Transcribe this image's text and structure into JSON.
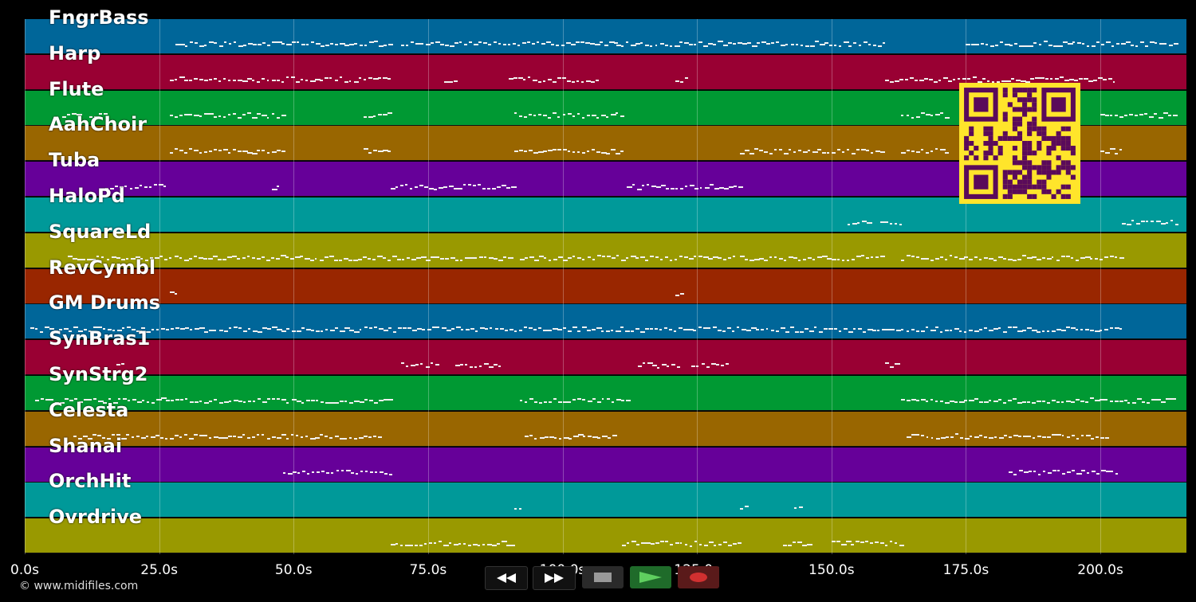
{
  "tracks": [
    {
      "name": "FngrBass",
      "color": "#006699"
    },
    {
      "name": "Harp",
      "color": "#990033"
    },
    {
      "name": "Flute",
      "color": "#009933"
    },
    {
      "name": "AahChoir",
      "color": "#996600"
    },
    {
      "name": "Tuba",
      "color": "#660099"
    },
    {
      "name": "HaloPd",
      "color": "#009999"
    },
    {
      "name": "SquareLd",
      "color": "#999900"
    },
    {
      "name": "RevCymbl",
      "color": "#992600"
    },
    {
      "name": "GM Drums",
      "color": "#006699"
    },
    {
      "name": "SynBras1",
      "color": "#990033"
    },
    {
      "name": "SynStrg2",
      "color": "#009933"
    },
    {
      "name": "Celesta",
      "color": "#996600"
    },
    {
      "name": "Shanai",
      "color": "#660099"
    },
    {
      "name": "OrchHit",
      "color": "#009999"
    },
    {
      "name": "Ovrdrive",
      "color": "#999900"
    }
  ],
  "timeline": {
    "max_seconds": 216,
    "ticks": [
      "0.0s",
      "25.0s",
      "50.0s",
      "75.0s",
      "100.0s",
      "125.0s",
      "150.0s",
      "175.0s",
      "200.0s"
    ],
    "tick_seconds": [
      0,
      25,
      50,
      75,
      100,
      125,
      150,
      175,
      200
    ]
  },
  "note_segments": [
    [
      [
        28,
        68
      ],
      [
        70,
        110
      ],
      [
        110,
        160
      ],
      [
        175,
        214
      ]
    ],
    [
      [
        27,
        68
      ],
      [
        78,
        80
      ],
      [
        90,
        107
      ],
      [
        121,
        123
      ],
      [
        160,
        203
      ]
    ],
    [
      [
        7,
        10
      ],
      [
        12,
        15
      ],
      [
        27,
        48
      ],
      [
        63,
        68
      ],
      [
        91,
        111
      ],
      [
        163,
        172
      ],
      [
        200,
        214
      ]
    ],
    [
      [
        27,
        48
      ],
      [
        63,
        68
      ],
      [
        91,
        111
      ],
      [
        133,
        160
      ],
      [
        163,
        172
      ],
      [
        200,
        204
      ]
    ],
    [
      [
        15,
        26
      ],
      [
        46,
        47
      ],
      [
        68,
        91
      ],
      [
        112,
        133
      ]
    ],
    [
      [
        153,
        157
      ],
      [
        159,
        163
      ],
      [
        204,
        214
      ]
    ],
    [
      [
        8,
        90
      ],
      [
        92,
        132
      ],
      [
        133,
        160
      ],
      [
        163,
        204
      ]
    ],
    [
      [
        27,
        28
      ],
      [
        121,
        122
      ]
    ],
    [
      [
        1,
        204
      ]
    ],
    [
      [
        17,
        18
      ],
      [
        70,
        77
      ],
      [
        80,
        89
      ],
      [
        114,
        122
      ],
      [
        124,
        131
      ],
      [
        160,
        162
      ]
    ],
    [
      [
        2,
        28
      ],
      [
        28,
        68
      ],
      [
        92,
        112
      ],
      [
        163,
        205
      ],
      [
        205,
        214
      ]
    ],
    [
      [
        9,
        66
      ],
      [
        93,
        110
      ],
      [
        164,
        201
      ]
    ],
    [
      [
        48,
        68
      ],
      [
        183,
        203
      ]
    ],
    [
      [
        91,
        92
      ],
      [
        133,
        134
      ],
      [
        143,
        144
      ]
    ],
    [
      [
        68,
        91
      ],
      [
        111,
        133
      ],
      [
        141,
        146
      ],
      [
        150,
        163
      ]
    ]
  ],
  "transport": {
    "rewind_icon": "rewind-icon",
    "forward_icon": "fast-forward-icon",
    "stop_icon": "stop-icon",
    "play_icon": "play-icon",
    "record_icon": "record-icon"
  },
  "footer": {
    "copyright": "© www.midifiles.com"
  },
  "qr": {
    "icon": "qr-code-icon",
    "color": "#ffe52b",
    "ink": "#5a0a5a"
  }
}
